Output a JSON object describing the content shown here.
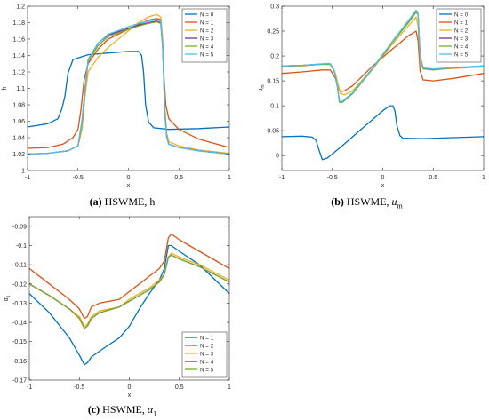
{
  "figure": {
    "captions": [
      {
        "label": "(a)",
        "text": " HSWME, h"
      },
      {
        "label": "(b)",
        "text": " HSWME, ",
        "math": "u",
        "sub": "m"
      },
      {
        "label": "(c)",
        "text": " HSWME, ",
        "math": "α",
        "sub": "1"
      }
    ]
  },
  "chart_data": [
    {
      "type": "line",
      "xlabel": "x",
      "ylabel": "h",
      "xlim": [
        -1,
        1
      ],
      "ylim": [
        1.0,
        1.2
      ],
      "xticks": [
        -1,
        -0.5,
        0,
        0.5,
        1
      ],
      "xtick_labels": [
        "-1",
        "-0.5",
        "0",
        "0.5",
        "1"
      ],
      "yticks": [
        1.0,
        1.02,
        1.04,
        1.06,
        1.08,
        1.1,
        1.12,
        1.14,
        1.16,
        1.18,
        1.2
      ],
      "ytick_labels": [
        "1",
        "1.02",
        "1.04",
        "1.06",
        "1.08",
        "1.1",
        "1.12",
        "1.14",
        "1.16",
        "1.18",
        "1.2"
      ],
      "legend": "top-right",
      "series": [
        {
          "name": "N = 0",
          "color": "#0072BD",
          "x": [
            -1,
            -0.8,
            -0.7,
            -0.66,
            -0.63,
            -0.6,
            -0.55,
            -0.4,
            -0.2,
            0,
            0.1,
            0.13,
            0.15,
            0.17,
            0.2,
            0.25,
            0.4,
            0.7,
            1
          ],
          "y": [
            1.053,
            1.057,
            1.063,
            1.075,
            1.09,
            1.118,
            1.135,
            1.141,
            1.143,
            1.145,
            1.145,
            1.14,
            1.12,
            1.08,
            1.059,
            1.052,
            1.05,
            1.051,
            1.053
          ]
        },
        {
          "name": "N = 1",
          "color": "#D95319",
          "x": [
            -1,
            -0.8,
            -0.65,
            -0.55,
            -0.5,
            -0.47,
            -0.44,
            -0.4,
            -0.3,
            -0.2,
            0,
            0.1,
            0.2,
            0.28,
            0.32,
            0.33,
            0.35,
            0.37,
            0.4,
            0.5,
            0.7,
            1
          ],
          "y": [
            1.027,
            1.028,
            1.032,
            1.04,
            1.05,
            1.075,
            1.11,
            1.13,
            1.148,
            1.16,
            1.172,
            1.178,
            1.183,
            1.185,
            1.184,
            1.17,
            1.12,
            1.08,
            1.063,
            1.05,
            1.038,
            1.028
          ]
        },
        {
          "name": "N = 2",
          "color": "#EDB120",
          "x": [
            -1,
            -0.8,
            -0.6,
            -0.5,
            -0.46,
            -0.43,
            -0.4,
            -0.3,
            -0.2,
            0,
            0.1,
            0.2,
            0.28,
            0.32,
            0.34,
            0.36,
            0.38,
            0.4,
            0.5,
            0.7,
            1
          ],
          "y": [
            1.02,
            1.021,
            1.024,
            1.03,
            1.05,
            1.09,
            1.12,
            1.138,
            1.15,
            1.17,
            1.18,
            1.187,
            1.19,
            1.187,
            1.16,
            1.08,
            1.045,
            1.035,
            1.03,
            1.025,
            1.021
          ]
        },
        {
          "name": "N = 3",
          "color": "#7E2F8E",
          "x": [
            -1,
            -0.8,
            -0.6,
            -0.5,
            -0.46,
            -0.43,
            -0.4,
            -0.3,
            -0.2,
            0,
            0.1,
            0.2,
            0.28,
            0.32,
            0.34,
            0.36,
            0.38,
            0.4,
            0.5,
            0.7,
            1
          ],
          "y": [
            1.02,
            1.021,
            1.024,
            1.03,
            1.06,
            1.1,
            1.135,
            1.155,
            1.165,
            1.173,
            1.177,
            1.18,
            1.182,
            1.18,
            1.15,
            1.07,
            1.04,
            1.032,
            1.028,
            1.024,
            1.02
          ]
        },
        {
          "name": "N = 4",
          "color": "#77AC30",
          "x": [
            -1,
            -0.8,
            -0.6,
            -0.5,
            -0.46,
            -0.43,
            -0.4,
            -0.3,
            -0.2,
            0,
            0.1,
            0.2,
            0.28,
            0.32,
            0.34,
            0.36,
            0.38,
            0.4,
            0.5,
            0.7,
            1
          ],
          "y": [
            1.02,
            1.021,
            1.024,
            1.03,
            1.06,
            1.1,
            1.133,
            1.152,
            1.163,
            1.172,
            1.176,
            1.179,
            1.181,
            1.179,
            1.15,
            1.07,
            1.04,
            1.032,
            1.028,
            1.024,
            1.02
          ]
        },
        {
          "name": "N = 5",
          "color": "#4DBEEE",
          "x": [
            -1,
            -0.8,
            -0.6,
            -0.5,
            -0.46,
            -0.43,
            -0.4,
            -0.3,
            -0.2,
            0,
            0.1,
            0.2,
            0.28,
            0.32,
            0.34,
            0.36,
            0.38,
            0.4,
            0.5,
            0.7,
            1
          ],
          "y": [
            1.02,
            1.021,
            1.024,
            1.03,
            1.062,
            1.1,
            1.135,
            1.155,
            1.166,
            1.175,
            1.179,
            1.182,
            1.184,
            1.182,
            1.15,
            1.07,
            1.04,
            1.032,
            1.028,
            1.024,
            1.02
          ]
        }
      ]
    },
    {
      "type": "line",
      "xlabel": "x",
      "ylabel": "u_m",
      "xlim": [
        -1,
        1
      ],
      "ylim": [
        -0.03,
        0.3
      ],
      "xticks": [
        -1,
        -0.5,
        0,
        0.5,
        1
      ],
      "xtick_labels": [
        "-1",
        "-0.5",
        "0",
        "0.5",
        "1"
      ],
      "yticks": [
        0,
        0.05,
        0.1,
        0.15,
        0.2,
        0.25,
        0.3
      ],
      "ytick_labels": [
        "0",
        "0.05",
        "0.1",
        "0.15",
        "0.2",
        "0.25",
        "0.3"
      ],
      "legend": "top-right",
      "series": [
        {
          "name": "N = 0",
          "color": "#0072BD",
          "x": [
            -1,
            -0.8,
            -0.7,
            -0.66,
            -0.63,
            -0.6,
            -0.55,
            -0.4,
            -0.2,
            0,
            0.07,
            0.1,
            0.12,
            0.14,
            0.17,
            0.2,
            0.4,
            0.7,
            1
          ],
          "y": [
            0.038,
            0.039,
            0.037,
            0.03,
            0.01,
            -0.008,
            -0.005,
            0.02,
            0.055,
            0.09,
            0.1,
            0.1,
            0.09,
            0.06,
            0.04,
            0.035,
            0.034,
            0.036,
            0.038
          ]
        },
        {
          "name": "N = 1",
          "color": "#D95319",
          "x": [
            -1,
            -0.8,
            -0.6,
            -0.52,
            -0.47,
            -0.44,
            -0.42,
            -0.38,
            -0.3,
            -0.1,
            0.1,
            0.25,
            0.33,
            0.35,
            0.37,
            0.4,
            0.5,
            0.7,
            1
          ],
          "y": [
            0.165,
            0.168,
            0.172,
            0.172,
            0.155,
            0.135,
            0.128,
            0.13,
            0.14,
            0.18,
            0.215,
            0.24,
            0.25,
            0.23,
            0.17,
            0.152,
            0.15,
            0.155,
            0.165
          ]
        },
        {
          "name": "N = 2",
          "color": "#EDB120",
          "x": [
            -1,
            -0.8,
            -0.6,
            -0.52,
            -0.47,
            -0.44,
            -0.42,
            -0.38,
            -0.3,
            -0.1,
            0.1,
            0.25,
            0.33,
            0.35,
            0.37,
            0.4,
            0.5,
            0.7,
            1
          ],
          "y": [
            0.178,
            0.18,
            0.184,
            0.184,
            0.165,
            0.14,
            0.125,
            0.122,
            0.13,
            0.175,
            0.225,
            0.26,
            0.278,
            0.26,
            0.19,
            0.175,
            0.173,
            0.175,
            0.178
          ]
        },
        {
          "name": "N = 3",
          "color": "#7E2F8E",
          "x": [
            -1,
            -0.8,
            -0.6,
            -0.52,
            -0.48,
            -0.45,
            -0.43,
            -0.4,
            -0.3,
            -0.1,
            0.1,
            0.25,
            0.33,
            0.35,
            0.37,
            0.4,
            0.5,
            0.7,
            1
          ],
          "y": [
            0.18,
            0.181,
            0.184,
            0.184,
            0.17,
            0.14,
            0.108,
            0.108,
            0.125,
            0.175,
            0.23,
            0.268,
            0.29,
            0.285,
            0.2,
            0.175,
            0.173,
            0.176,
            0.18
          ]
        },
        {
          "name": "N = 4",
          "color": "#77AC30",
          "x": [
            -1,
            -0.8,
            -0.6,
            -0.52,
            -0.48,
            -0.45,
            -0.43,
            -0.4,
            -0.3,
            -0.1,
            0.1,
            0.25,
            0.33,
            0.35,
            0.37,
            0.4,
            0.5,
            0.7,
            1
          ],
          "y": [
            0.18,
            0.181,
            0.183,
            0.183,
            0.168,
            0.138,
            0.107,
            0.107,
            0.124,
            0.174,
            0.229,
            0.266,
            0.288,
            0.283,
            0.2,
            0.174,
            0.172,
            0.176,
            0.18
          ]
        },
        {
          "name": "N = 5",
          "color": "#4DBEEE",
          "x": [
            -1,
            -0.8,
            -0.6,
            -0.52,
            -0.48,
            -0.45,
            -0.43,
            -0.4,
            -0.3,
            -0.1,
            0.1,
            0.25,
            0.33,
            0.35,
            0.37,
            0.4,
            0.5,
            0.7,
            1
          ],
          "y": [
            0.18,
            0.181,
            0.184,
            0.185,
            0.17,
            0.14,
            0.109,
            0.109,
            0.126,
            0.176,
            0.231,
            0.27,
            0.292,
            0.286,
            0.2,
            0.176,
            0.174,
            0.177,
            0.18
          ]
        }
      ]
    },
    {
      "type": "line",
      "xlabel": "x",
      "ylabel": "α_1",
      "xlim": [
        -1,
        1
      ],
      "ylim": [
        -0.17,
        -0.085
      ],
      "xticks": [
        -1,
        -0.5,
        0,
        0.5,
        1
      ],
      "xtick_labels": [
        "-1",
        "-0.5",
        "0",
        "0.5",
        "1"
      ],
      "yticks": [
        -0.17,
        -0.16,
        -0.15,
        -0.14,
        -0.13,
        -0.12,
        -0.11,
        -0.1,
        -0.09
      ],
      "ytick_labels": [
        "-0.17",
        "-0.16",
        "-0.15",
        "-0.14",
        "-0.13",
        "-0.12",
        "-0.11",
        "-0.1",
        "-0.09"
      ],
      "legend": "bottom-right",
      "series": [
        {
          "name": "N = 1",
          "color": "#0072BD",
          "x": [
            -1,
            -0.8,
            -0.6,
            -0.5,
            -0.45,
            -0.42,
            -0.38,
            -0.3,
            -0.1,
            0,
            0.1,
            0.2,
            0.3,
            0.35,
            0.39,
            0.42,
            0.5,
            0.7,
            1
          ],
          "y": [
            -0.125,
            -0.135,
            -0.148,
            -0.157,
            -0.162,
            -0.161,
            -0.158,
            -0.155,
            -0.148,
            -0.142,
            -0.133,
            -0.125,
            -0.118,
            -0.112,
            -0.1,
            -0.1,
            -0.103,
            -0.11,
            -0.125
          ]
        },
        {
          "name": "N = 2",
          "color": "#D95319",
          "x": [
            -1,
            -0.8,
            -0.6,
            -0.5,
            -0.45,
            -0.42,
            -0.38,
            -0.3,
            -0.1,
            0,
            0.1,
            0.2,
            0.3,
            0.35,
            0.39,
            0.42,
            0.5,
            0.7,
            1
          ],
          "y": [
            -0.112,
            -0.12,
            -0.128,
            -0.133,
            -0.138,
            -0.137,
            -0.132,
            -0.13,
            -0.128,
            -0.124,
            -0.12,
            -0.116,
            -0.112,
            -0.108,
            -0.096,
            -0.094,
            -0.097,
            -0.103,
            -0.112
          ]
        },
        {
          "name": "N = 3",
          "color": "#EDB120",
          "x": [
            -1,
            -0.8,
            -0.6,
            -0.5,
            -0.45,
            -0.42,
            -0.38,
            -0.3,
            -0.1,
            0,
            0.1,
            0.2,
            0.3,
            0.35,
            0.39,
            0.42,
            0.5,
            0.7,
            1
          ],
          "y": [
            -0.12,
            -0.126,
            -0.133,
            -0.137,
            -0.142,
            -0.141,
            -0.137,
            -0.134,
            -0.132,
            -0.128,
            -0.125,
            -0.122,
            -0.118,
            -0.115,
            -0.106,
            -0.104,
            -0.106,
            -0.11,
            -0.118
          ]
        },
        {
          "name": "N = 4",
          "color": "#7E2F8E",
          "x": [
            -1,
            -0.8,
            -0.6,
            -0.5,
            -0.45,
            -0.42,
            -0.38,
            -0.3,
            -0.1,
            0,
            0.1,
            0.2,
            0.3,
            0.35,
            0.39,
            0.42,
            0.5,
            0.7,
            1
          ],
          "y": [
            -0.12,
            -0.126,
            -0.133,
            -0.138,
            -0.143,
            -0.142,
            -0.138,
            -0.135,
            -0.132,
            -0.129,
            -0.126,
            -0.123,
            -0.119,
            -0.115,
            -0.106,
            -0.105,
            -0.107,
            -0.111,
            -0.119
          ]
        },
        {
          "name": "N = 5",
          "color": "#77AC30",
          "x": [
            -1,
            -0.8,
            -0.6,
            -0.5,
            -0.45,
            -0.42,
            -0.38,
            -0.3,
            -0.1,
            0,
            0.1,
            0.2,
            0.3,
            0.35,
            0.39,
            0.42,
            0.5,
            0.7,
            1
          ],
          "y": [
            -0.12,
            -0.126,
            -0.133,
            -0.138,
            -0.143,
            -0.142,
            -0.138,
            -0.135,
            -0.132,
            -0.129,
            -0.126,
            -0.123,
            -0.119,
            -0.115,
            -0.106,
            -0.105,
            -0.107,
            -0.111,
            -0.119
          ]
        }
      ]
    }
  ]
}
